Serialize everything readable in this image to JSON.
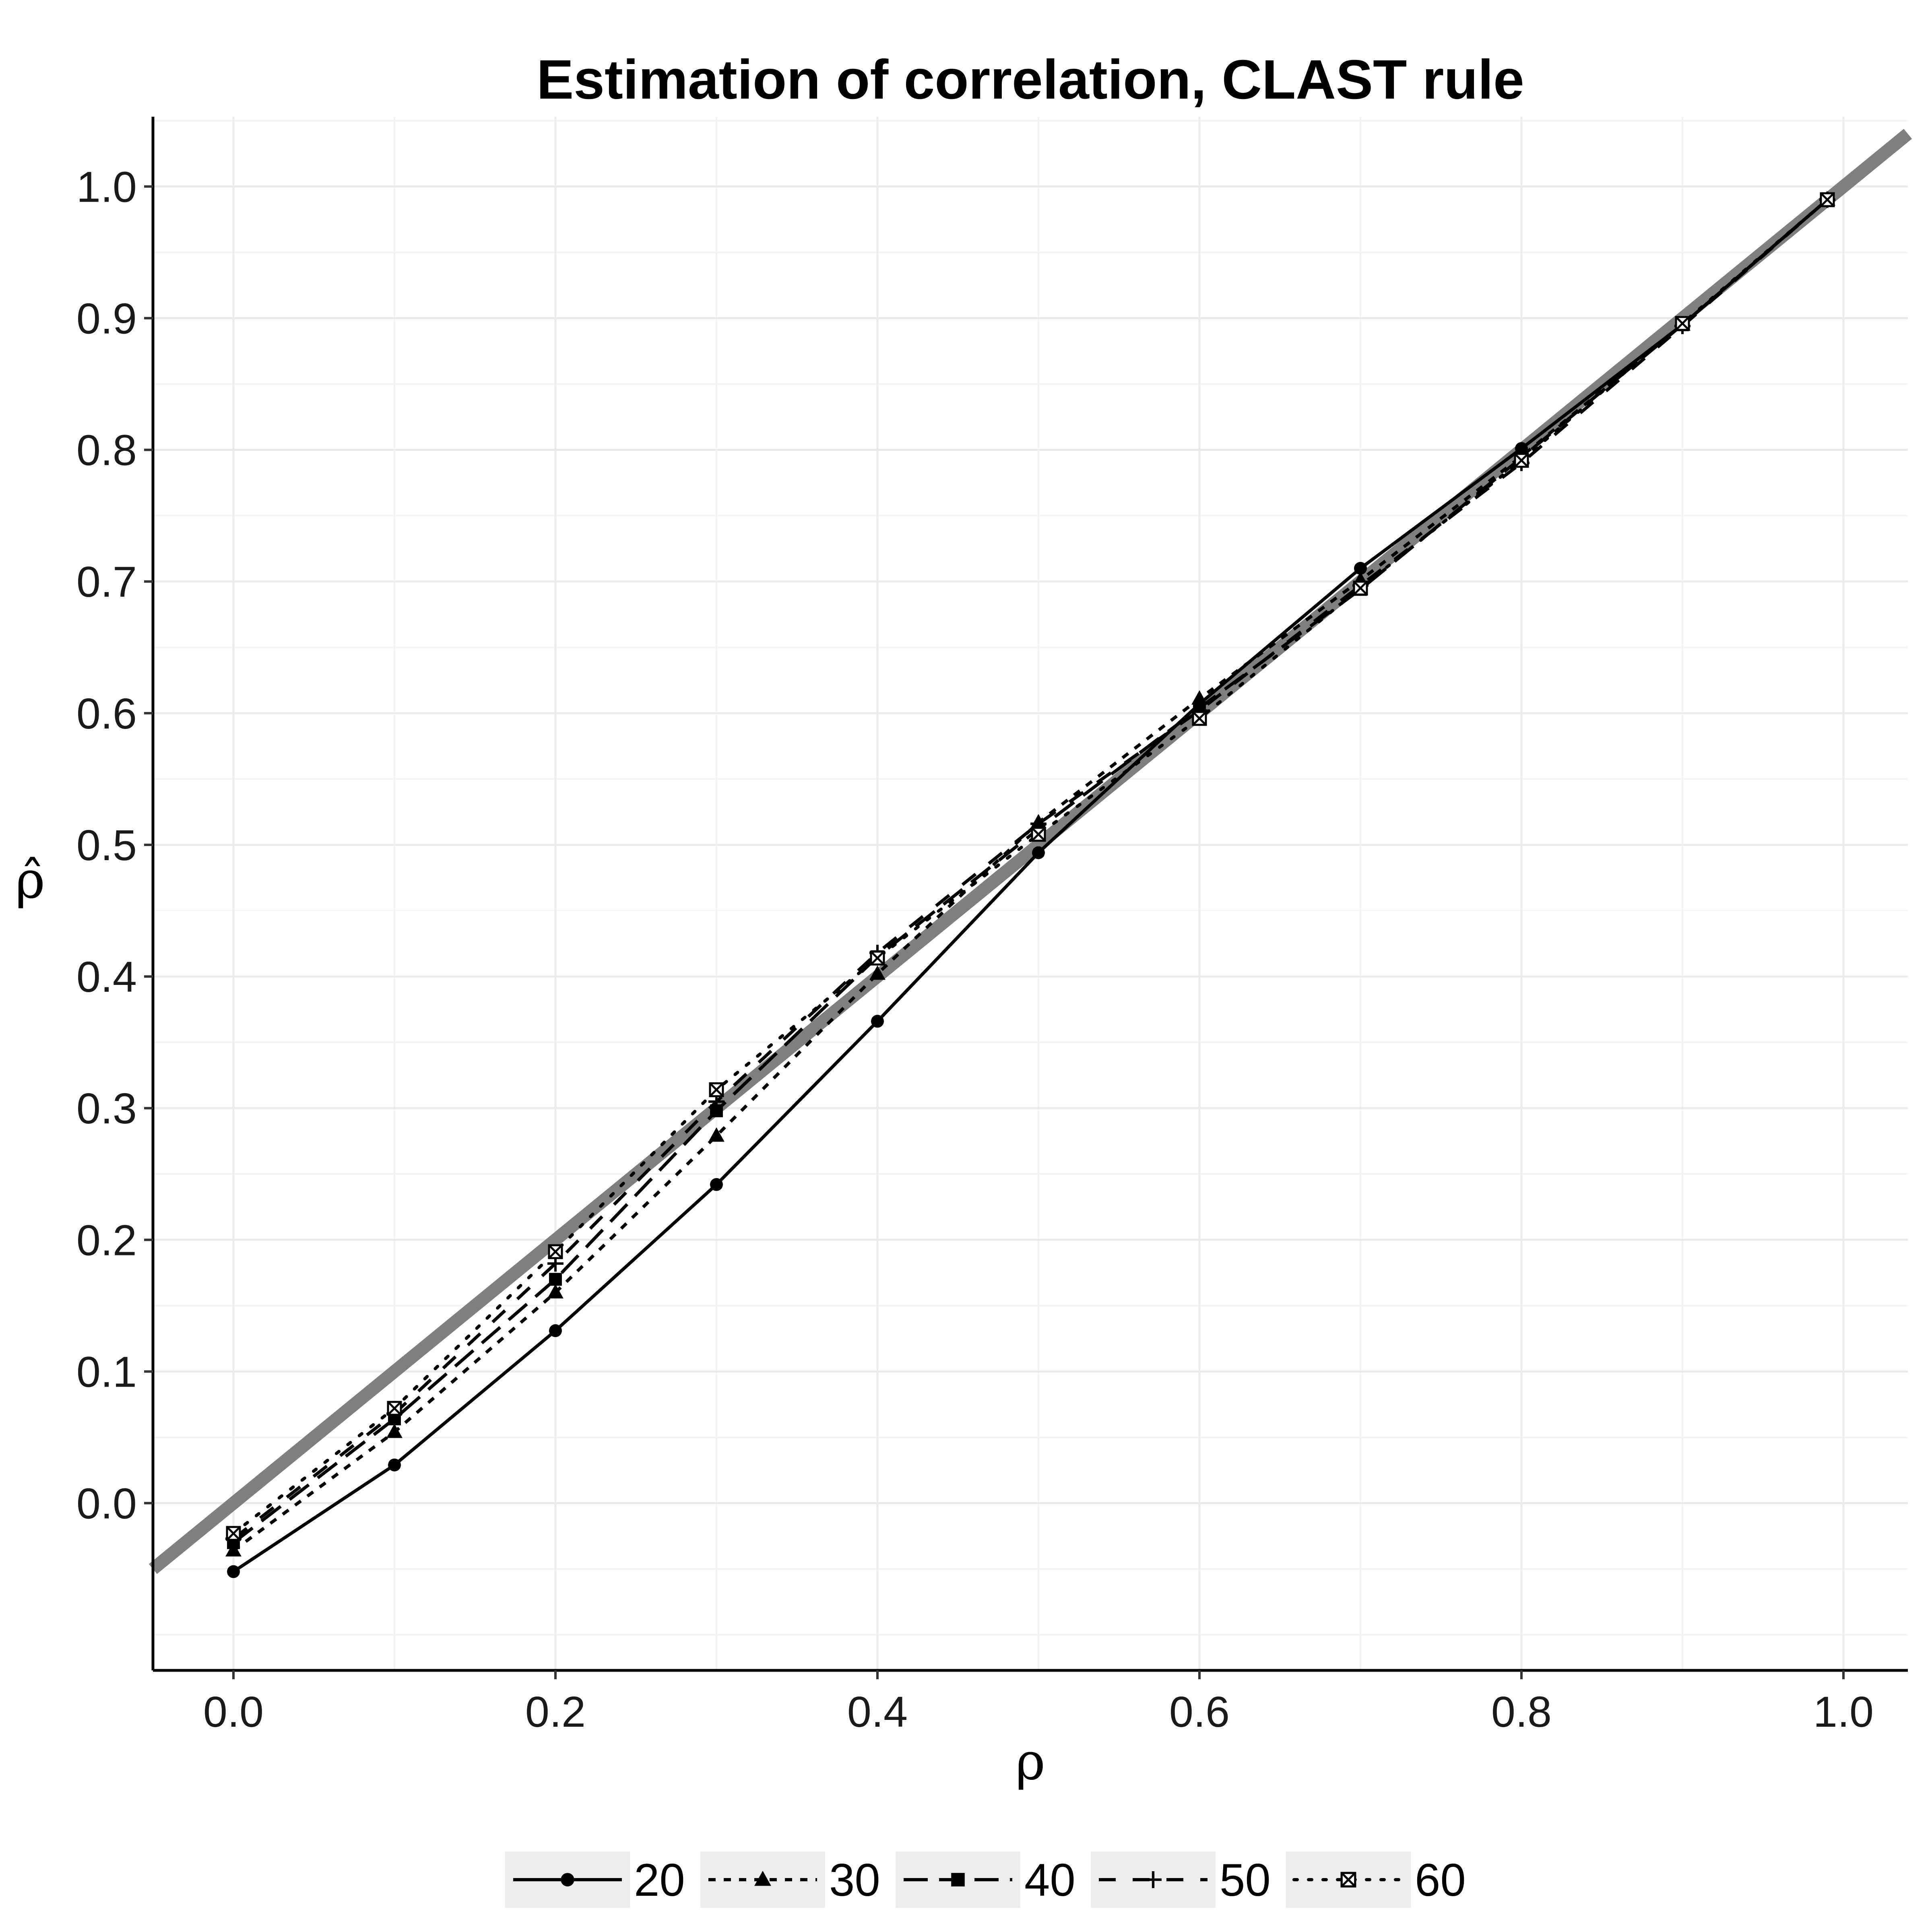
{
  "chart_data": {
    "type": "line",
    "title": "Estimation of correlation, CLAST rule",
    "xlabel": "ρ",
    "ylabel": "ρ̂",
    "xlim": [
      -0.05,
      1.04
    ],
    "ylim": [
      -0.127,
      1.053
    ],
    "xticks": [
      "0.0",
      "0.2",
      "0.4",
      "0.6",
      "0.8",
      "1.0"
    ],
    "yticks": [
      "0.0",
      "0.1",
      "0.2",
      "0.3",
      "0.4",
      "0.5",
      "0.6",
      "0.7",
      "0.8",
      "0.9",
      "1.0"
    ],
    "grid": true,
    "legend_position": "bottom",
    "reference_line": {
      "slope": 1,
      "intercept": 0,
      "color": "#7f7f7f"
    },
    "x": [
      0.0,
      0.1,
      0.2,
      0.3,
      0.4,
      0.5,
      0.6,
      0.7,
      0.8,
      0.9,
      0.99
    ],
    "series": [
      {
        "name": "20",
        "dash": "solid",
        "marker": "circle",
        "values": [
          -0.052,
          0.029,
          0.131,
          0.242,
          0.366,
          0.494,
          0.607,
          0.71,
          0.801,
          0.895,
          0.99
        ]
      },
      {
        "name": "30",
        "dash": "short-dash",
        "marker": "triangle",
        "values": [
          -0.036,
          0.054,
          0.16,
          0.279,
          0.402,
          0.517,
          0.611,
          0.701,
          0.795,
          0.895,
          0.99
        ]
      },
      {
        "name": "40",
        "dash": "long-dash",
        "marker": "square",
        "values": [
          -0.03,
          0.064,
          0.17,
          0.298,
          0.415,
          0.512,
          0.604,
          0.694,
          0.794,
          0.895,
          0.99
        ]
      },
      {
        "name": "50",
        "dash": "dash",
        "marker": "plus",
        "values": [
          -0.027,
          0.068,
          0.182,
          0.305,
          0.418,
          0.516,
          0.602,
          0.697,
          0.79,
          0.894,
          0.99
        ]
      },
      {
        "name": "60",
        "dash": "dotted",
        "marker": "square-x",
        "values": [
          -0.023,
          0.072,
          0.191,
          0.314,
          0.414,
          0.508,
          0.596,
          0.695,
          0.792,
          0.896,
          0.99
        ]
      }
    ]
  }
}
